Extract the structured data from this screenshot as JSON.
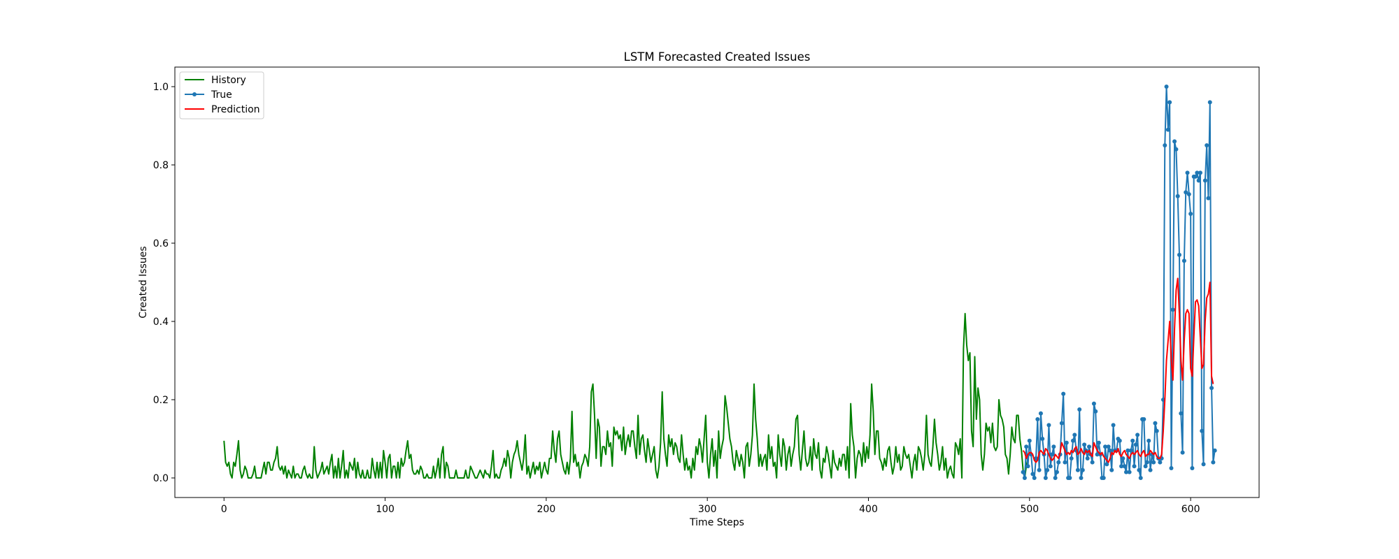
{
  "chart_data": {
    "type": "line",
    "title": "LSTM Forecasted Created Issues",
    "xlabel": "Time Steps",
    "ylabel": "Created Issues",
    "xlim": [
      -30.5,
      642.5
    ],
    "ylim": [
      -0.05,
      1.05
    ],
    "xticks": [
      0,
      100,
      200,
      300,
      400,
      500,
      600
    ],
    "yticks": [
      0.0,
      0.2,
      0.4,
      0.6,
      0.8,
      1.0
    ],
    "xtick_labels": [
      "0",
      "100",
      "200",
      "300",
      "400",
      "500",
      "600"
    ],
    "ytick_labels": [
      "0.0",
      "0.2",
      "0.4",
      "0.6",
      "0.8",
      "1.0"
    ],
    "grid": false,
    "legend": "upper-left",
    "series": [
      {
        "name": "History",
        "color": "#008000",
        "marker": false,
        "x_start": 0,
        "values": [
          0.095,
          0.04,
          0.03,
          0.04,
          0.01,
          0.0,
          0.04,
          0.03,
          0.06,
          0.095,
          0.02,
          0.0,
          0.01,
          0.03,
          0.02,
          0.0,
          0.0,
          0.0,
          0.01,
          0.03,
          0.0,
          0.0,
          0.0,
          0.0,
          0.02,
          0.04,
          0.01,
          0.04,
          0.04,
          0.02,
          0.02,
          0.04,
          0.05,
          0.08,
          0.03,
          0.02,
          0.03,
          0.01,
          0.03,
          0.0,
          0.02,
          0.01,
          0.0,
          0.03,
          0.0,
          0.01,
          0.01,
          0.0,
          0.0,
          0.02,
          0.03,
          0.01,
          0.0,
          0.01,
          0.0,
          0.0,
          0.08,
          0.02,
          0.0,
          0.01,
          0.02,
          0.04,
          0.01,
          0.02,
          0.03,
          0.01,
          0.04,
          0.06,
          0.0,
          0.03,
          0.0,
          0.05,
          0.0,
          0.03,
          0.07,
          0.0,
          0.02,
          0.0,
          0.04,
          0.03,
          0.02,
          0.05,
          0.0,
          0.04,
          0.01,
          0.0,
          0.02,
          0.0,
          0.0,
          0.02,
          0.0,
          0.0,
          0.05,
          0.02,
          0.0,
          0.04,
          0.0,
          0.04,
          0.0,
          0.07,
          0.04,
          0.0,
          0.05,
          0.06,
          0.0,
          0.03,
          0.03,
          0.0,
          0.04,
          0.0,
          0.05,
          0.03,
          0.04,
          0.07,
          0.095,
          0.05,
          0.06,
          0.02,
          0.01,
          0.01,
          0.02,
          0.01,
          0.03,
          0.02,
          0.0,
          0.0,
          0.01,
          0.0,
          0.0,
          0.0,
          0.03,
          0.0,
          0.02,
          0.05,
          0.0,
          0.06,
          0.08,
          0.0,
          0.04,
          0.03,
          0.0,
          0.0,
          0.0,
          0.0,
          0.02,
          0.0,
          0.0,
          0.0,
          0.0,
          0.0,
          0.02,
          0.0,
          0.0,
          0.03,
          0.02,
          0.01,
          0.0,
          0.0,
          0.01,
          0.02,
          0.01,
          0.0,
          0.02,
          0.01,
          0.01,
          0.0,
          0.03,
          0.07,
          0.0,
          0.01,
          0.0,
          0.0,
          0.02,
          0.03,
          0.05,
          0.03,
          0.07,
          0.05,
          0.0,
          0.04,
          0.06,
          0.07,
          0.095,
          0.06,
          0.04,
          0.02,
          0.05,
          0.11,
          0.01,
          0.03,
          0.0,
          0.02,
          0.04,
          0.01,
          0.03,
          0.02,
          0.04,
          0.0,
          0.02,
          0.04,
          0.02,
          0.01,
          0.05,
          0.05,
          0.12,
          0.07,
          0.04,
          0.1,
          0.12,
          0.06,
          0.04,
          0.02,
          0.01,
          0.04,
          0.01,
          0.05,
          0.17,
          0.04,
          0.06,
          0.03,
          0.04,
          0.0,
          0.03,
          0.04,
          0.06,
          0.05,
          0.03,
          0.08,
          0.22,
          0.24,
          0.16,
          0.05,
          0.15,
          0.13,
          0.03,
          0.08,
          0.08,
          0.06,
          0.12,
          0.08,
          0.09,
          0.03,
          0.13,
          0.11,
          0.12,
          0.1,
          0.11,
          0.07,
          0.13,
          0.06,
          0.09,
          0.11,
          0.08,
          0.12,
          0.12,
          0.08,
          0.05,
          0.16,
          0.06,
          0.1,
          0.11,
          0.07,
          0.04,
          0.1,
          0.07,
          0.04,
          0.06,
          0.08,
          0.02,
          0.0,
          0.03,
          0.09,
          0.22,
          0.1,
          0.06,
          0.03,
          0.11,
          0.08,
          0.1,
          0.06,
          0.09,
          0.08,
          0.05,
          0.04,
          0.11,
          0.06,
          0.02,
          0.05,
          0.02,
          0.03,
          0.0,
          0.05,
          0.02,
          0.08,
          0.06,
          0.1,
          0.08,
          0.04,
          0.1,
          0.16,
          0.04,
          0.0,
          0.06,
          0.1,
          0.03,
          0.07,
          0.0,
          0.12,
          0.05,
          0.08,
          0.1,
          0.21,
          0.18,
          0.14,
          0.1,
          0.08,
          0.04,
          0.02,
          0.07,
          0.05,
          0.03,
          0.06,
          0.04,
          0.0,
          0.08,
          0.09,
          0.03,
          0.06,
          0.11,
          0.24,
          0.15,
          0.1,
          0.03,
          0.06,
          0.03,
          0.05,
          0.06,
          0.02,
          0.11,
          0.05,
          0.08,
          0.03,
          0.04,
          0.0,
          0.11,
          0.06,
          0.03,
          0.1,
          0.08,
          0.02,
          0.06,
          0.08,
          0.03,
          0.06,
          0.08,
          0.15,
          0.16,
          0.06,
          0.02,
          0.07,
          0.12,
          0.05,
          0.03,
          0.04,
          0.08,
          0.02,
          0.1,
          0.06,
          0.05,
          0.09,
          0.02,
          0.0,
          0.05,
          0.04,
          0.08,
          0.06,
          0.03,
          0.0,
          0.07,
          0.04,
          0.03,
          0.02,
          0.05,
          0.03,
          0.06,
          0.06,
          0.02,
          0.08,
          0.0,
          0.19,
          0.11,
          0.08,
          0.0,
          0.05,
          0.07,
          0.06,
          0.03,
          0.09,
          0.04,
          0.08,
          0.05,
          0.11,
          0.24,
          0.17,
          0.06,
          0.12,
          0.12,
          0.05,
          0.04,
          0.02,
          0.05,
          0.03,
          0.07,
          0.08,
          0.04,
          0.01,
          0.03,
          0.08,
          0.04,
          0.06,
          0.02,
          0.03,
          0.08,
          0.06,
          0.05,
          0.06,
          0.03,
          0.0,
          0.04,
          0.06,
          0.02,
          0.08,
          0.07,
          0.05,
          0.02,
          0.06,
          0.16,
          0.06,
          0.04,
          0.03,
          0.08,
          0.15,
          0.09,
          0.06,
          0.02,
          0.04,
          0.08,
          0.02,
          0.05,
          0.0,
          0.02,
          0.03,
          0.01,
          0.0,
          0.09,
          0.08,
          0.06,
          0.1,
          0.0,
          0.33,
          0.42,
          0.34,
          0.3,
          0.32,
          0.12,
          0.08,
          0.31,
          0.15,
          0.23,
          0.2,
          0.06,
          0.02,
          0.06,
          0.14,
          0.12,
          0.13,
          0.09,
          0.14,
          0.08,
          0.07,
          0.08,
          0.2,
          0.16,
          0.15,
          0.13,
          0.06,
          0.05,
          0.01,
          0.06,
          0.13,
          0.1,
          0.09,
          0.16,
          0.16,
          0.1,
          0.07,
          0.02,
          0.0,
          0.03,
          0.05
        ]
      },
      {
        "name": "True",
        "color": "#1f77b4",
        "marker": true,
        "x_start": 496,
        "values": [
          0.015,
          0.0,
          0.08,
          0.03,
          0.095,
          0.06,
          0.01,
          0.0,
          0.05,
          0.15,
          0.02,
          0.165,
          0.1,
          0.06,
          0.0,
          0.02,
          0.135,
          0.03,
          0.06,
          0.08,
          0.0,
          0.015,
          0.04,
          0.06,
          0.14,
          0.215,
          0.04,
          0.09,
          0.0,
          0.0,
          0.05,
          0.095,
          0.11,
          0.07,
          0.02,
          0.175,
          0.0,
          0.02,
          0.085,
          0.07,
          0.05,
          0.08,
          0.06,
          0.04,
          0.19,
          0.17,
          0.06,
          0.09,
          0.06,
          0.0,
          0.0,
          0.08,
          0.035,
          0.08,
          0.07,
          0.02,
          0.135,
          0.07,
          0.07,
          0.1,
          0.095,
          0.03,
          0.05,
          0.03,
          0.015,
          0.07,
          0.015,
          0.07,
          0.095,
          0.03,
          0.085,
          0.11,
          0.02,
          0.0,
          0.15,
          0.15,
          0.03,
          0.04,
          0.095,
          0.02,
          0.06,
          0.04,
          0.14,
          0.12,
          0.05,
          0.04,
          0.05,
          0.2,
          0.85,
          1.0,
          0.89,
          0.96,
          0.025,
          0.43,
          0.86,
          0.84,
          0.72,
          0.57,
          0.165,
          0.065,
          0.555,
          0.73,
          0.78,
          0.725,
          0.675,
          0.025,
          0.77,
          0.77,
          0.78,
          0.76,
          0.78,
          0.12,
          0.035,
          0.76,
          0.85,
          0.715,
          0.96,
          0.23,
          0.04,
          0.07
        ]
      },
      {
        "name": "Prediction",
        "color": "#ff0000",
        "marker": false,
        "x_start": 496,
        "values": [
          0.07,
          0.065,
          0.05,
          0.06,
          0.065,
          0.065,
          0.06,
          0.045,
          0.04,
          0.045,
          0.065,
          0.07,
          0.065,
          0.06,
          0.075,
          0.07,
          0.06,
          0.05,
          0.045,
          0.05,
          0.06,
          0.055,
          0.05,
          0.065,
          0.09,
          0.08,
          0.07,
          0.06,
          0.065,
          0.06,
          0.07,
          0.065,
          0.075,
          0.08,
          0.06,
          0.065,
          0.075,
          0.065,
          0.06,
          0.07,
          0.065,
          0.07,
          0.06,
          0.055,
          0.09,
          0.08,
          0.07,
          0.065,
          0.06,
          0.065,
          0.055,
          0.05,
          0.045,
          0.04,
          0.05,
          0.065,
          0.06,
          0.07,
          0.065,
          0.075,
          0.06,
          0.055,
          0.065,
          0.07,
          0.06,
          0.055,
          0.05,
          0.06,
          0.065,
          0.06,
          0.065,
          0.07,
          0.06,
          0.055,
          0.065,
          0.07,
          0.055,
          0.06,
          0.06,
          0.07,
          0.065,
          0.06,
          0.065,
          0.055,
          0.05,
          0.05,
          0.06,
          0.12,
          0.2,
          0.3,
          0.35,
          0.4,
          0.3,
          0.25,
          0.38,
          0.48,
          0.51,
          0.42,
          0.3,
          0.25,
          0.35,
          0.42,
          0.43,
          0.42,
          0.28,
          0.26,
          0.36,
          0.45,
          0.455,
          0.44,
          0.36,
          0.28,
          0.29,
          0.4,
          0.46,
          0.47,
          0.5,
          0.26,
          0.24
        ]
      }
    ]
  }
}
